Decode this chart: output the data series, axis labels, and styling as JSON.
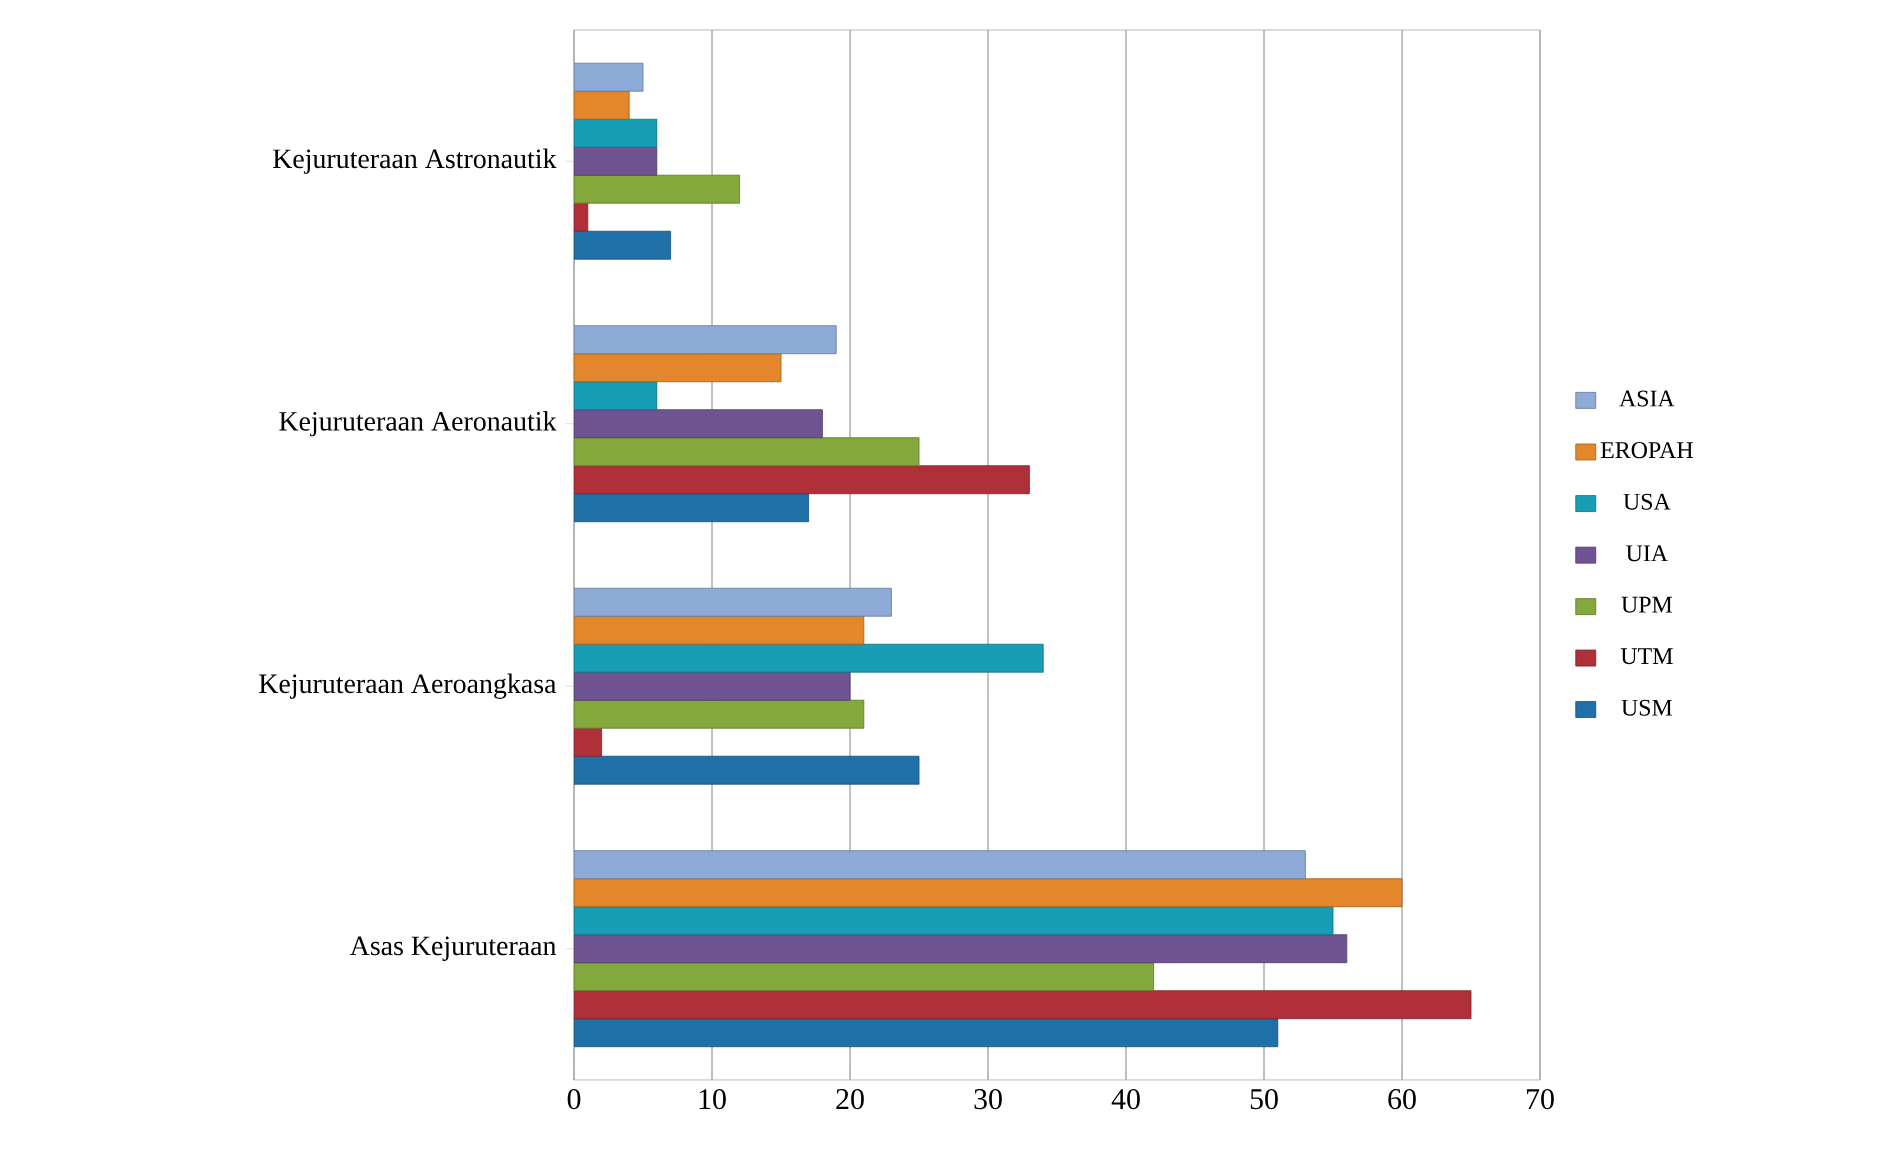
{
  "chart_data": {
    "type": "bar",
    "orientation": "horizontal",
    "categories": [
      "Kejuruteraan Astronautik",
      "Kejuruteraan Aeronautik",
      "Kejuruteraan Aeroangkasa",
      "Asas Kejuruteraan"
    ],
    "series": [
      {
        "name": "USM",
        "color": "#1f6fa8",
        "values": [
          7,
          17,
          25,
          51
        ]
      },
      {
        "name": "UTM",
        "color": "#b0303a",
        "values": [
          1,
          33,
          2,
          65
        ]
      },
      {
        "name": "UPM",
        "color": "#83a83c",
        "values": [
          12,
          25,
          21,
          42
        ]
      },
      {
        "name": "UIA",
        "color": "#6f5393",
        "values": [
          6,
          18,
          20,
          56
        ]
      },
      {
        "name": "USA",
        "color": "#179eb4",
        "values": [
          6,
          6,
          34,
          55
        ]
      },
      {
        "name": "EROPAH",
        "color": "#e4862b",
        "values": [
          4,
          15,
          21,
          60
        ]
      },
      {
        "name": "ASIA",
        "color": "#8eaad6",
        "values": [
          5,
          19,
          23,
          53
        ]
      }
    ],
    "xlim": [
      0,
      70
    ],
    "xticks": [
      0,
      10,
      20,
      30,
      40,
      50,
      60,
      70
    ],
    "grid": "x",
    "legend": "right"
  }
}
